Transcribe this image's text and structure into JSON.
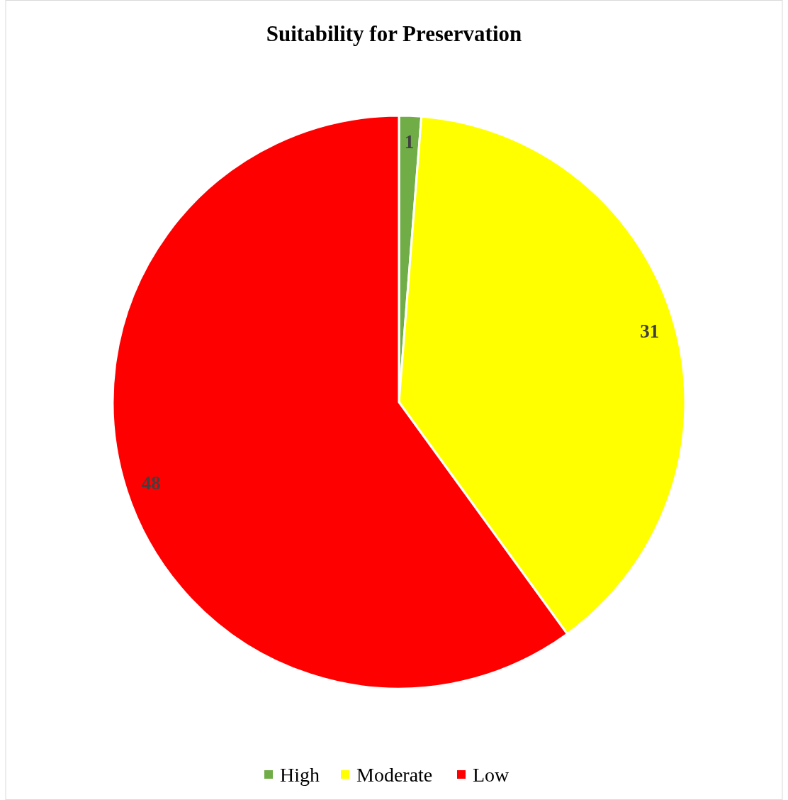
{
  "chart_data": {
    "type": "pie",
    "title": "Suitability for Preservation",
    "categories": [
      "High",
      "Moderate",
      "Low"
    ],
    "values": [
      1,
      31,
      48
    ],
    "colors": [
      "#70ad47",
      "#ffff00",
      "#ff0000"
    ],
    "data_labels": true,
    "legend": "bottom"
  }
}
